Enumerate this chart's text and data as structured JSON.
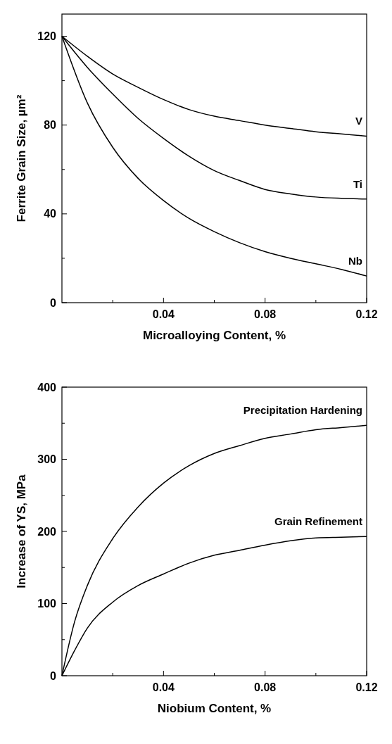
{
  "chart_data": [
    {
      "type": "line",
      "xlabel": "Microalloying Content, %",
      "ylabel": "Ferrite Grain Size, µm²",
      "xlim": [
        0,
        0.12
      ],
      "ylim": [
        0,
        130
      ],
      "xticks": [
        {
          "value": 0.02,
          "label": null
        },
        0.04,
        {
          "value": 0.06,
          "label": null
        },
        0.08,
        {
          "value": 0.1,
          "label": null
        },
        0.12
      ],
      "yticks": [
        0,
        {
          "value": 20,
          "label": null
        },
        40,
        {
          "value": 60,
          "label": null
        },
        80,
        {
          "value": 100,
          "label": null
        },
        120
      ],
      "x": [
        0,
        0.01,
        0.02,
        0.03,
        0.04,
        0.05,
        0.06,
        0.07,
        0.08,
        0.09,
        0.1,
        0.11,
        0.12
      ],
      "grid": false,
      "legend": false,
      "marker": "none",
      "line_style": "solid",
      "series": [
        {
          "name": "V",
          "color": "#000000",
          "values": [
            120,
            111,
            103,
            97,
            91.5,
            87,
            84,
            82,
            80,
            78.5,
            77,
            76,
            75
          ]
        },
        {
          "name": "Ti",
          "color": "#000000",
          "values": [
            120,
            106,
            94,
            83,
            74,
            66,
            59.5,
            55,
            51,
            49,
            47.6,
            47,
            46.7
          ]
        },
        {
          "name": "Nb",
          "color": "#000000",
          "values": [
            120,
            90,
            70,
            56,
            46,
            38,
            32,
            27,
            23,
            20,
            17.5,
            15,
            12
          ]
        }
      ]
    },
    {
      "type": "line",
      "xlabel": "Niobium Content, %",
      "ylabel": "Increase of YS, MPa",
      "xlim": [
        0,
        0.12
      ],
      "ylim": [
        0,
        400
      ],
      "xticks": [
        {
          "value": 0.02,
          "label": null
        },
        0.04,
        {
          "value": 0.06,
          "label": null
        },
        0.08,
        {
          "value": 0.1,
          "label": null
        },
        0.12
      ],
      "yticks": [
        0,
        {
          "value": 50,
          "label": null
        },
        100,
        {
          "value": 150,
          "label": null
        },
        200,
        {
          "value": 250,
          "label": null
        },
        300,
        {
          "value": 350,
          "label": null
        },
        400
      ],
      "x": [
        0,
        0.005,
        0.01,
        0.02,
        0.03,
        0.04,
        0.05,
        0.06,
        0.07,
        0.08,
        0.09,
        0.1,
        0.11,
        0.12
      ],
      "grid": false,
      "legend": false,
      "marker": "none",
      "line_style": "solid",
      "series": [
        {
          "name": "Precipitation Hardening",
          "color": "#000000",
          "values": [
            0,
            75,
            125,
            190,
            234,
            267,
            291,
            308,
            319,
            329,
            335,
            341,
            344,
            347
          ]
        },
        {
          "name": "Grain Refinement",
          "color": "#000000",
          "values": [
            0,
            35,
            66,
            102,
            125,
            141,
            156,
            167,
            174,
            181,
            187,
            191,
            192,
            193
          ]
        }
      ]
    }
  ]
}
